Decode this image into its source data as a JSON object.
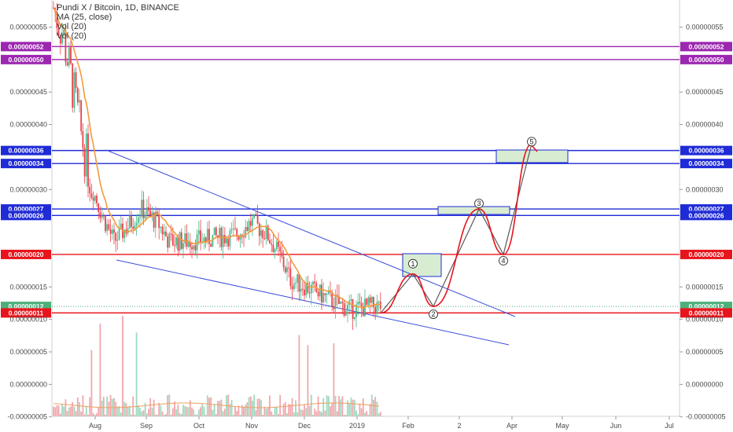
{
  "legend": {
    "symbol": "Pundi X / Bitcoin, 1D, BINANCE",
    "ma": "MA (25, close)",
    "vol": "Vol (20)",
    "vol2": "Vol (20)"
  },
  "chart_data": {
    "type": "candlestick",
    "symbol": "Pundi X / Bitcoin",
    "interval": "1D",
    "exchange": "BINANCE",
    "y_ticks": [
      "0.00000055",
      "0.00000045",
      "0.00000040",
      "0.00000030",
      "0.00000015",
      "0.00000010",
      "0.00000005",
      "0.00000000",
      "-0.00000005"
    ],
    "y_ticks_values": [
      55,
      45,
      40,
      30,
      15,
      10,
      5,
      0,
      -5
    ],
    "x_ticks": [
      "Aug",
      "Sep",
      "Oct",
      "Nov",
      "Dec",
      "2019",
      "Feb",
      "2",
      "Apr",
      "May",
      "Jun",
      "Jul"
    ],
    "ma_label": "MA (25, close)",
    "volume_label": "Vol (20)",
    "price_levels": [
      {
        "label": "0.00000052",
        "value": 52,
        "color": "#9c27b0"
      },
      {
        "label": "0.00000050",
        "value": 50,
        "color": "#9c27b0"
      },
      {
        "label": "0.00000036",
        "value": 36,
        "color": "#1f2bd6"
      },
      {
        "label": "0.00000034",
        "value": 34,
        "color": "#1f2bd6"
      },
      {
        "label": "0.00000027",
        "value": 27,
        "color": "#1f2bd6"
      },
      {
        "label": "0.00000026",
        "value": 26,
        "color": "#1f2bd6"
      },
      {
        "label": "0.00000020",
        "value": 20,
        "color": "#e8141c"
      },
      {
        "label": "0.00000012",
        "value": 12,
        "color": "#4caf7a"
      },
      {
        "label": "0.00000011",
        "value": 11,
        "color": "#e8141c"
      }
    ],
    "wave_labels": [
      "1",
      "2",
      "3",
      "4",
      "5"
    ],
    "wave_points": [
      {
        "label": "1",
        "value": 17
      },
      {
        "label": "2",
        "value": 12
      },
      {
        "label": "3",
        "value": 27
      },
      {
        "label": "4",
        "value": 20
      },
      {
        "label": "5",
        "value": 37
      }
    ]
  }
}
